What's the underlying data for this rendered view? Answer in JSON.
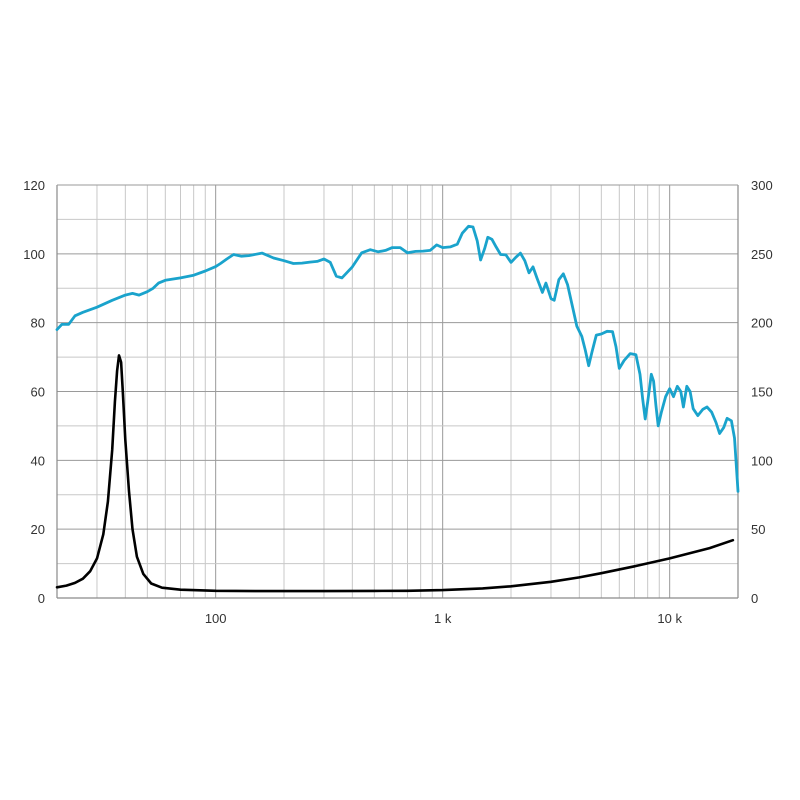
{
  "chart_data": {
    "type": "line",
    "x_scale": "log",
    "xlim": [
      20,
      20000
    ],
    "grid": true,
    "x_tick_labels": [
      {
        "value": 100,
        "label": "100"
      },
      {
        "value": 1000,
        "label": "1 k"
      },
      {
        "value": 10000,
        "label": "10 k"
      }
    ],
    "y_left": {
      "lim": [
        0,
        120
      ],
      "ticks": [
        0,
        20,
        40,
        60,
        80,
        100,
        120
      ]
    },
    "y_right": {
      "lim": [
        0,
        300
      ],
      "ticks": [
        0,
        50,
        100,
        150,
        200,
        250,
        300
      ]
    },
    "series": [
      {
        "key": "frequency-response",
        "axis": "left",
        "color": "#1aa3cc",
        "points": [
          [
            20,
            78
          ],
          [
            21,
            79.5
          ],
          [
            22.5,
            79.5
          ],
          [
            24,
            82
          ],
          [
            26,
            83
          ],
          [
            30,
            84.5
          ],
          [
            35,
            86.5
          ],
          [
            40,
            88
          ],
          [
            43,
            88.5
          ],
          [
            46,
            88
          ],
          [
            50,
            89
          ],
          [
            53,
            90
          ],
          [
            56,
            91.5
          ],
          [
            60,
            92.3
          ],
          [
            70,
            93
          ],
          [
            80,
            93.8
          ],
          [
            90,
            95
          ],
          [
            100,
            96.3
          ],
          [
            105,
            97.2
          ],
          [
            112,
            98.5
          ],
          [
            120,
            99.8
          ],
          [
            130,
            99.3
          ],
          [
            140,
            99.5
          ],
          [
            160,
            100.2
          ],
          [
            180,
            98.8
          ],
          [
            200,
            98
          ],
          [
            220,
            97.2
          ],
          [
            240,
            97.3
          ],
          [
            260,
            97.6
          ],
          [
            280,
            97.8
          ],
          [
            300,
            98.5
          ],
          [
            320,
            97.5
          ],
          [
            340,
            93.5
          ],
          [
            360,
            93
          ],
          [
            400,
            96.2
          ],
          [
            440,
            100.3
          ],
          [
            480,
            101.2
          ],
          [
            520,
            100.6
          ],
          [
            560,
            101
          ],
          [
            600,
            101.8
          ],
          [
            650,
            101.8
          ],
          [
            700,
            100.3
          ],
          [
            760,
            100.7
          ],
          [
            820,
            100.8
          ],
          [
            880,
            101
          ],
          [
            940,
            102.6
          ],
          [
            1000,
            101.8
          ],
          [
            1080,
            102
          ],
          [
            1160,
            102.8
          ],
          [
            1220,
            106
          ],
          [
            1300,
            108
          ],
          [
            1360,
            107.8
          ],
          [
            1420,
            103.8
          ],
          [
            1470,
            98.2
          ],
          [
            1530,
            101.5
          ],
          [
            1580,
            104.8
          ],
          [
            1650,
            104.2
          ],
          [
            1720,
            102
          ],
          [
            1800,
            99.8
          ],
          [
            1900,
            99.7
          ],
          [
            2000,
            97.5
          ],
          [
            2100,
            99
          ],
          [
            2200,
            100.2
          ],
          [
            2300,
            98
          ],
          [
            2400,
            94.5
          ],
          [
            2500,
            96.2
          ],
          [
            2600,
            93
          ],
          [
            2750,
            88.8
          ],
          [
            2850,
            91.5
          ],
          [
            3000,
            87
          ],
          [
            3100,
            86.5
          ],
          [
            3250,
            92.5
          ],
          [
            3400,
            94.2
          ],
          [
            3550,
            91
          ],
          [
            3750,
            84
          ],
          [
            3900,
            79
          ],
          [
            4100,
            76
          ],
          [
            4250,
            72
          ],
          [
            4400,
            67.5
          ],
          [
            4550,
            71.5
          ],
          [
            4750,
            76.4
          ],
          [
            5000,
            76.7
          ],
          [
            5300,
            77.5
          ],
          [
            5600,
            77.4
          ],
          [
            5800,
            73
          ],
          [
            6000,
            66.7
          ],
          [
            6300,
            69
          ],
          [
            6700,
            71
          ],
          [
            7100,
            70.7
          ],
          [
            7400,
            65
          ],
          [
            7600,
            58
          ],
          [
            7800,
            52
          ],
          [
            8000,
            57
          ],
          [
            8300,
            65
          ],
          [
            8500,
            63
          ],
          [
            8700,
            56
          ],
          [
            8900,
            50
          ],
          [
            9200,
            54
          ],
          [
            9600,
            58.5
          ],
          [
            10000,
            60.8
          ],
          [
            10400,
            58.5
          ],
          [
            10800,
            61.5
          ],
          [
            11200,
            60
          ],
          [
            11500,
            55.5
          ],
          [
            11900,
            61.5
          ],
          [
            12300,
            60
          ],
          [
            12700,
            55
          ],
          [
            13300,
            53
          ],
          [
            14000,
            54.8
          ],
          [
            14600,
            55.5
          ],
          [
            15300,
            54
          ],
          [
            16000,
            51
          ],
          [
            16600,
            47.8
          ],
          [
            17300,
            49.5
          ],
          [
            17900,
            52.2
          ],
          [
            18700,
            51.5
          ],
          [
            19300,
            46.5
          ],
          [
            20000,
            31
          ]
        ]
      },
      {
        "key": "impedance",
        "axis": "left",
        "color": "#000000",
        "points": [
          [
            20,
            3.1
          ],
          [
            22,
            3.6
          ],
          [
            24,
            4.4
          ],
          [
            26,
            5.6
          ],
          [
            28,
            7.8
          ],
          [
            30,
            11.5
          ],
          [
            32,
            18.5
          ],
          [
            33.5,
            28
          ],
          [
            35,
            43
          ],
          [
            36,
            57
          ],
          [
            36.8,
            66
          ],
          [
            37.5,
            70.5
          ],
          [
            38.3,
            68.5
          ],
          [
            39,
            60
          ],
          [
            40,
            46
          ],
          [
            41.5,
            31
          ],
          [
            43,
            20
          ],
          [
            45,
            12
          ],
          [
            48,
            7
          ],
          [
            52,
            4.2
          ],
          [
            58,
            3
          ],
          [
            70,
            2.4
          ],
          [
            100,
            2.1
          ],
          [
            150,
            2
          ],
          [
            200,
            2
          ],
          [
            300,
            2
          ],
          [
            500,
            2.05
          ],
          [
            700,
            2.1
          ],
          [
            1000,
            2.3
          ],
          [
            1500,
            2.8
          ],
          [
            2000,
            3.4
          ],
          [
            3000,
            4.7
          ],
          [
            4000,
            6
          ],
          [
            5000,
            7.2
          ],
          [
            7000,
            9.2
          ],
          [
            10000,
            11.5
          ],
          [
            15000,
            14.5
          ],
          [
            19000,
            16.8
          ]
        ]
      }
    ]
  }
}
